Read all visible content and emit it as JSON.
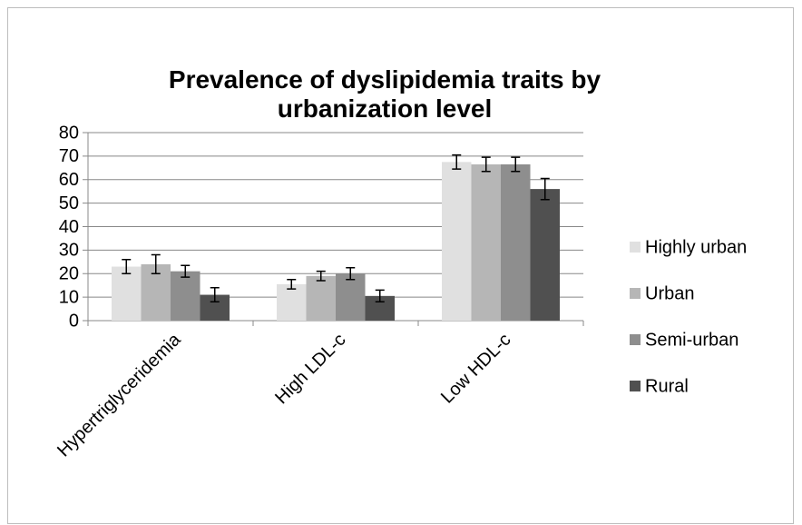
{
  "chart_data": {
    "type": "bar",
    "title": [
      "Prevalence of dyslipidemia traits by",
      "urbanization level"
    ],
    "categories": [
      "Hypertriglyceridemia",
      "High LDL-c",
      "Low HDL-c"
    ],
    "series": [
      {
        "name": "Highly urban",
        "color": "#e0e0e0",
        "values": [
          23,
          15.5,
          67.5
        ],
        "errors": [
          3,
          2,
          3
        ]
      },
      {
        "name": "Urban",
        "color": "#b6b6b6",
        "values": [
          24,
          19,
          66.5
        ],
        "errors": [
          4,
          2,
          3
        ]
      },
      {
        "name": "Semi-urban",
        "color": "#8e8e8e",
        "values": [
          21,
          20,
          66.5
        ],
        "errors": [
          2.5,
          2.5,
          3
        ]
      },
      {
        "name": "Rural",
        "color": "#505050",
        "values": [
          11,
          10.5,
          56
        ],
        "errors": [
          3,
          2.5,
          4.5
        ]
      }
    ],
    "ylim": [
      0,
      80
    ],
    "yticks": [
      0,
      10,
      20,
      30,
      40,
      50,
      60,
      70,
      80
    ],
    "grid": true,
    "legend": "right"
  }
}
